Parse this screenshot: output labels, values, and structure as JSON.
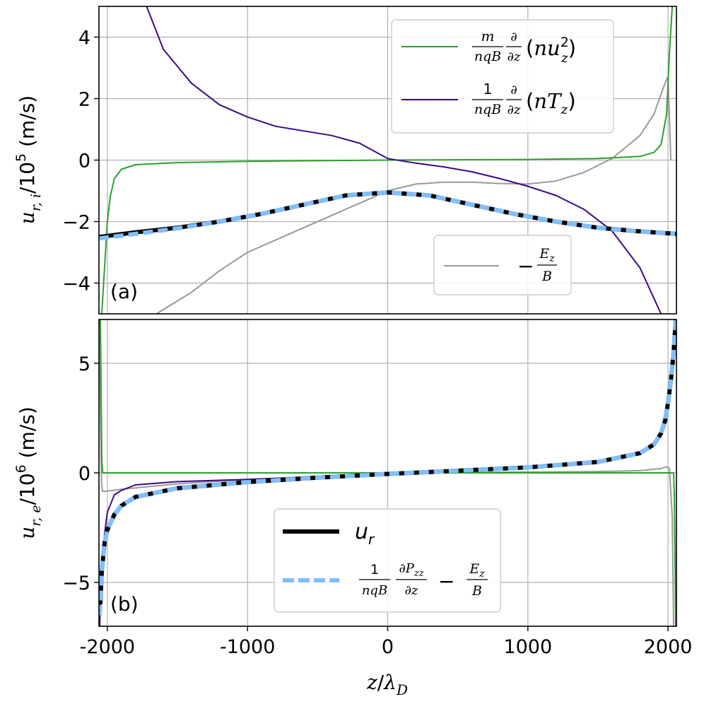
{
  "chart_data": [
    {
      "type": "line",
      "panel": "(a)",
      "ylabel": "u_{r,i}/10^5 (m/s)",
      "ylabel_parts": {
        "var": "u",
        "sub": "r, i",
        "unit": "/10",
        "exp": "5",
        "tail": " (m/s)"
      },
      "ylim": [
        -5,
        5
      ],
      "xlim": [
        -2060,
        2060
      ],
      "yticks": [
        4,
        2,
        0,
        -2,
        -4
      ],
      "ytick_labels": [
        "4",
        "2",
        "0",
        "−2",
        "−4"
      ],
      "grid": true,
      "legend_main": {
        "placement": "top-right",
        "entries": [
          {
            "name": "green",
            "label": "m/(nqB) ∂/∂z (n u_z^2)"
          },
          {
            "name": "indigo",
            "label": "1/(nqB) ∂/∂z (n T_z)"
          }
        ]
      },
      "legend_secondary": {
        "placement": "lower-right",
        "entries": [
          {
            "name": "gray",
            "label": "−E_z/B"
          }
        ]
      },
      "series": [
        {
          "name": "u_r (black solid)",
          "color": "#000000",
          "x": [
            -2060,
            -1800,
            -1500,
            -1200,
            -900,
            -600,
            -300,
            0,
            300,
            600,
            900,
            1200,
            1500,
            1800,
            2060
          ],
          "y": [
            -2.5,
            -2.35,
            -2.2,
            -2.0,
            -1.75,
            -1.45,
            -1.15,
            -1.05,
            -1.15,
            -1.45,
            -1.75,
            -2.0,
            -2.2,
            -2.32,
            -2.4
          ]
        },
        {
          "name": "sum (light blue dashed)",
          "color": "#80bfff",
          "x": [
            -2060,
            -1800,
            -1500,
            -1200,
            -900,
            -600,
            -300,
            0,
            300,
            600,
            900,
            1200,
            1500,
            1800,
            2050
          ],
          "y": [
            -2.55,
            -2.4,
            -2.22,
            -2.0,
            -1.75,
            -1.45,
            -1.15,
            -1.05,
            -1.15,
            -1.45,
            -1.75,
            -2.0,
            -2.2,
            -2.32,
            -2.4
          ]
        },
        {
          "name": "green",
          "color": "#2ca02c",
          "x": [
            -2040,
            -2020,
            -2000,
            -1980,
            -1950,
            -1900,
            -1800,
            -1500,
            -1000,
            0,
            1000,
            1500,
            1800,
            1900,
            1950,
            1990,
            2010,
            2030
          ],
          "y": [
            -5,
            -3.5,
            -2.0,
            -1.2,
            -0.6,
            -0.3,
            -0.15,
            -0.08,
            -0.04,
            0,
            0.02,
            0.05,
            0.12,
            0.25,
            0.5,
            1.5,
            3.5,
            5
          ]
        },
        {
          "name": "indigo",
          "color": "#3a0a82",
          "x": [
            -1720,
            -1600,
            -1400,
            -1200,
            -1000,
            -800,
            -600,
            -400,
            -200,
            0,
            200,
            400,
            600,
            800,
            1000,
            1200,
            1400,
            1600,
            1800,
            1950
          ],
          "y": [
            5,
            3.6,
            2.5,
            1.8,
            1.4,
            1.1,
            0.95,
            0.8,
            0.55,
            0.05,
            -0.1,
            -0.22,
            -0.38,
            -0.6,
            -0.85,
            -1.15,
            -1.6,
            -2.3,
            -3.5,
            -5
          ]
        },
        {
          "name": "gray",
          "color": "#999999",
          "x": [
            -1650,
            -1400,
            -1200,
            -1000,
            -800,
            -600,
            -400,
            -200,
            0,
            200,
            400,
            600,
            800,
            1000,
            1200,
            1400,
            1600,
            1800,
            1900,
            1970,
            2000,
            2020
          ],
          "y": [
            -5,
            -4.3,
            -3.6,
            -3.0,
            -2.6,
            -2.2,
            -1.8,
            -1.4,
            -1.0,
            -0.78,
            -0.72,
            -0.72,
            -0.76,
            -0.78,
            -0.68,
            -0.4,
            0.05,
            0.8,
            1.5,
            2.4,
            2.72,
            0
          ]
        }
      ]
    },
    {
      "type": "line",
      "panel": "(b)",
      "ylabel": "u_{r,e}/10^6 (m/s)",
      "ylabel_parts": {
        "var": "u",
        "sub": "r, e",
        "unit": "/10",
        "exp": "6",
        "tail": " (m/s)"
      },
      "ylim": [
        -7,
        7
      ],
      "xlim": [
        -2060,
        2060
      ],
      "yticks": [
        5,
        0,
        -5
      ],
      "ytick_labels": [
        "5",
        "0",
        "−5"
      ],
      "xticks": [
        -2000,
        -1000,
        0,
        1000,
        2000
      ],
      "xtick_labels": [
        "-2000",
        "-1000",
        "0",
        "1000",
        "2000"
      ],
      "xlabel": "z/λ_D",
      "xlabel_parts": {
        "var": "z",
        "sep": "/",
        "var2": "λ",
        "sub": "D"
      },
      "grid": true,
      "legend": {
        "placement": "lower-center",
        "entries": [
          {
            "name": "black",
            "label": "u_r"
          },
          {
            "name": "lightblue-dashed",
            "label": "1/(nqB) ∂P_zz/∂z − E_z/B"
          }
        ]
      },
      "series": [
        {
          "name": "u_r (black solid)",
          "color": "#000000",
          "x": [
            -2050,
            -2040,
            -2020,
            -2000,
            -1950,
            -1900,
            -1800,
            -1500,
            -1000,
            -500,
            0,
            500,
            1000,
            1500,
            1800,
            1900,
            1950,
            1980,
            2000,
            2020,
            2040,
            2055
          ],
          "y": [
            -6,
            -4.5,
            -3.2,
            -2.6,
            -1.9,
            -1.5,
            -1.1,
            -0.7,
            -0.42,
            -0.22,
            -0.05,
            0.1,
            0.25,
            0.5,
            0.9,
            1.3,
            1.8,
            2.4,
            3.2,
            4.2,
            5.5,
            7
          ]
        },
        {
          "name": "sum (light blue dashed)",
          "color": "#80bfff",
          "x": [
            -2055,
            -2040,
            -2020,
            -2000,
            -1950,
            -1900,
            -1800,
            -1500,
            -1000,
            -500,
            0,
            500,
            1000,
            1500,
            1800,
            1900,
            1950,
            1980,
            2000,
            2020,
            2040,
            2055
          ],
          "y": [
            -6.5,
            -4.5,
            -3.2,
            -2.6,
            -1.9,
            -1.5,
            -1.1,
            -0.7,
            -0.42,
            -0.22,
            -0.05,
            0.1,
            0.25,
            0.5,
            0.9,
            1.3,
            1.8,
            2.4,
            3.2,
            4.2,
            5.5,
            7
          ]
        },
        {
          "name": "indigo",
          "color": "#3a0a82",
          "x": [
            -2055,
            -2040,
            -2020,
            -2000,
            -1950,
            -1900,
            -1800,
            -1500,
            -1000,
            -500,
            0,
            500,
            1000,
            1500,
            1800,
            1900,
            1950,
            1980,
            2000,
            2020,
            2040,
            2055
          ],
          "y": [
            -7,
            -4.5,
            -2.8,
            -1.8,
            -1.0,
            -0.8,
            -0.55,
            -0.4,
            -0.3,
            -0.18,
            -0.04,
            0.1,
            0.25,
            0.5,
            0.9,
            1.3,
            1.8,
            2.4,
            3.2,
            4.2,
            5.5,
            7
          ]
        },
        {
          "name": "green",
          "color": "#2ca02c",
          "x": [
            -2050,
            -2045,
            -2040,
            -2035,
            -2030,
            -1000,
            0,
            1000,
            2040,
            2045,
            2050,
            2055
          ],
          "y": [
            7,
            4,
            0.6,
            0.1,
            0,
            0,
            0,
            0,
            0,
            -1,
            -4,
            -7
          ]
        },
        {
          "name": "gray",
          "color": "#999999",
          "x": [
            -2055,
            -2048,
            -2042,
            -2035,
            -2020,
            -1900,
            -1500,
            -1000,
            -500,
            0,
            500,
            1000,
            1500,
            1800,
            1950,
            1990,
            2010,
            2030,
            2040
          ],
          "y": [
            7,
            2,
            -0.4,
            -0.85,
            -0.85,
            -0.75,
            -0.5,
            -0.3,
            -0.15,
            -0.02,
            0.02,
            0.04,
            0.06,
            0.1,
            0.2,
            0.28,
            0.2,
            -2,
            -7
          ]
        }
      ]
    }
  ],
  "colors": {
    "black": "#000000",
    "lightblue": "#80bfff",
    "green": "#2ca02c",
    "indigo": "#3a0a82",
    "gray": "#999999",
    "grid": "#b0b0b0"
  }
}
